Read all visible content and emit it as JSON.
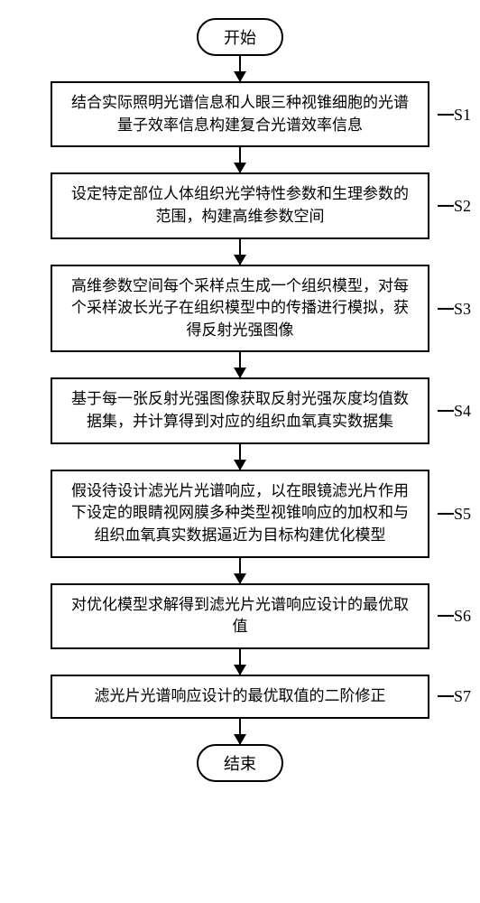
{
  "flowchart": {
    "type": "flowchart",
    "direction": "top-down",
    "background_color": "#ffffff",
    "border_color": "#000000",
    "border_width": 2,
    "font_family": "SimSun",
    "terminator_radius": 24,
    "process_width": 420,
    "arrow_length": 28,
    "arrowhead_size": 12,
    "start": "开始",
    "end": "结束",
    "steps": [
      {
        "id": "S1",
        "text": "结合实际照明光谱信息和人眼三种视锥细胞的光谱量子效率信息构建复合光谱效率信息"
      },
      {
        "id": "S2",
        "text": "设定特定部位人体组织光学特性参数和生理参数的范围，构建高维参数空间"
      },
      {
        "id": "S3",
        "text": "高维参数空间每个采样点生成一个组织模型，对每个采样波长光子在组织模型中的传播进行模拟，获得反射光强图像"
      },
      {
        "id": "S4",
        "text": "基于每一张反射光强图像获取反射光强灰度均值数据集，并计算得到对应的组织血氧真实数据集"
      },
      {
        "id": "S5",
        "text": "假设待设计滤光片光谱响应，以在眼镜滤光片作用下设定的眼睛视网膜多种类型视锥响应的加权和与组织血氧真实数据逼近为目标构建优化模型"
      },
      {
        "id": "S6",
        "text": "对优化模型求解得到滤光片光谱响应设计的最优取值"
      },
      {
        "id": "S7",
        "text": "滤光片光谱响应设计的最优取值的二阶修正"
      }
    ]
  }
}
